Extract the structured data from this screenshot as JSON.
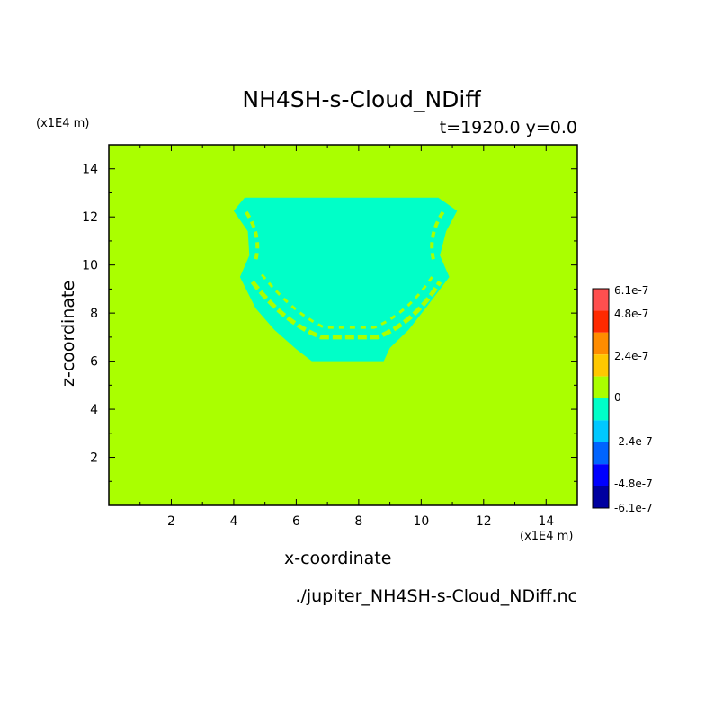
{
  "chart_data": {
    "type": "heatmap",
    "title": "NH4SH-s-Cloud_NDiff",
    "subtitle": "t=1920.0 y=0.0",
    "xlabel": "x-coordinate",
    "ylabel": "z-coordinate",
    "x_unit": "(x1E4 m)",
    "y_unit": "(x1E4 m)",
    "source": "./jupiter_NH4SH-s-Cloud_NDiff.nc",
    "xlim": [
      0,
      15
    ],
    "ylim": [
      0,
      15
    ],
    "x_ticks": [
      "2",
      "4",
      "6",
      "8",
      "10",
      "12",
      "14"
    ],
    "y_ticks": [
      "2",
      "4",
      "6",
      "8",
      "10",
      "12",
      "14"
    ],
    "background_value": 0,
    "background_color": "#aaff00",
    "anomaly_color": "#00ffc8",
    "anomaly_outline": [
      [
        4.35,
        12.8
      ],
      [
        10.55,
        12.8
      ],
      [
        11.15,
        12.25
      ],
      [
        10.8,
        11.4
      ],
      [
        10.6,
        10.4
      ],
      [
        10.9,
        9.5
      ],
      [
        10.2,
        8.3
      ],
      [
        9.6,
        7.3
      ],
      [
        9.0,
        6.55
      ],
      [
        8.8,
        6.0
      ],
      [
        6.5,
        6.0
      ],
      [
        6.0,
        6.5
      ],
      [
        5.3,
        7.3
      ],
      [
        4.7,
        8.2
      ],
      [
        4.2,
        9.5
      ],
      [
        4.5,
        10.4
      ],
      [
        4.45,
        11.4
      ],
      [
        4.0,
        12.25
      ]
    ],
    "colorbar": {
      "labels": [
        "6.1e-7",
        "4.8e-7",
        "2.4e-7",
        "0",
        "-2.4e-7",
        "-4.8e-7",
        "-6.1e-7"
      ],
      "levels": [
        6.1e-07,
        4.8e-07,
        2.4e-07,
        0,
        -2.4e-07,
        -4.8e-07,
        -6.1e-07
      ],
      "colors": [
        "#ff4f4f",
        "#ff2a00",
        "#ff8c00",
        "#ffc800",
        "#aaff00",
        "#00ffc8",
        "#00c8ff",
        "#0064ff",
        "#0000ff",
        "#0000a0"
      ]
    }
  }
}
